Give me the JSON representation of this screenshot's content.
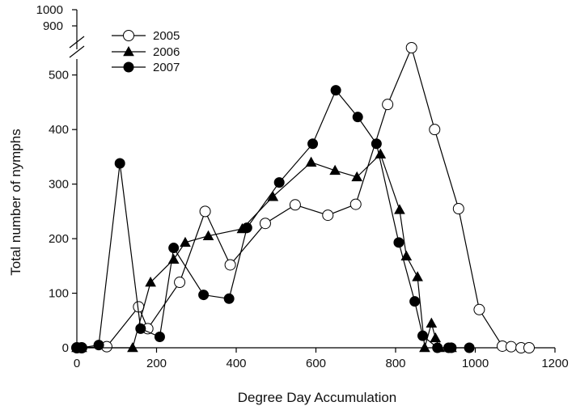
{
  "chart_data": {
    "type": "line",
    "title": "",
    "xlabel": "Degree Day Accumulation",
    "ylabel": "Total number of nymphs",
    "xlim": [
      0,
      1200
    ],
    "ylim": [
      0,
      550
    ],
    "x_ticks": [
      0,
      200,
      400,
      600,
      800,
      1000,
      1200
    ],
    "y_ticks": [
      0,
      100,
      200,
      300,
      400,
      500
    ],
    "y_break_ticks": [
      900,
      1000
    ],
    "axis_break": "y-axis broken between 550 and 900",
    "grid": false,
    "legend_position": "top-left",
    "series": [
      {
        "name": "2005",
        "marker": "open-circle",
        "x": [
          0,
          12,
          75,
          155,
          178,
          258,
          322,
          385,
          473,
          548,
          630,
          700,
          780,
          840,
          898,
          958,
          1010,
          1068,
          1090,
          1115,
          1135
        ],
        "y": [
          0,
          0,
          2,
          75,
          35,
          120,
          250,
          152,
          228,
          262,
          243,
          263,
          446,
          550,
          400,
          255,
          70,
          3,
          2,
          0,
          0
        ]
      },
      {
        "name": "2006",
        "marker": "filled-triangle",
        "x": [
          0,
          12,
          140,
          185,
          243,
          272,
          330,
          415,
          492,
          588,
          648,
          703,
          762,
          810,
          827,
          855,
          873,
          890,
          900,
          910,
          940
        ],
        "y": [
          0,
          0,
          0,
          120,
          162,
          193,
          205,
          218,
          277,
          340,
          325,
          313,
          355,
          253,
          168,
          130,
          0,
          45,
          18,
          0,
          0
        ]
      },
      {
        "name": "2007",
        "marker": "filled-circle",
        "x": [
          0,
          12,
          55,
          108,
          160,
          208,
          243,
          318,
          382,
          427,
          508,
          592,
          650,
          705,
          752,
          808,
          848,
          868,
          905,
          933,
          940,
          985
        ],
        "y": [
          0,
          0,
          5,
          338,
          35,
          20,
          183,
          97,
          90,
          220,
          303,
          374,
          472,
          423,
          374,
          193,
          85,
          22,
          0,
          0,
          0,
          0
        ]
      }
    ]
  }
}
